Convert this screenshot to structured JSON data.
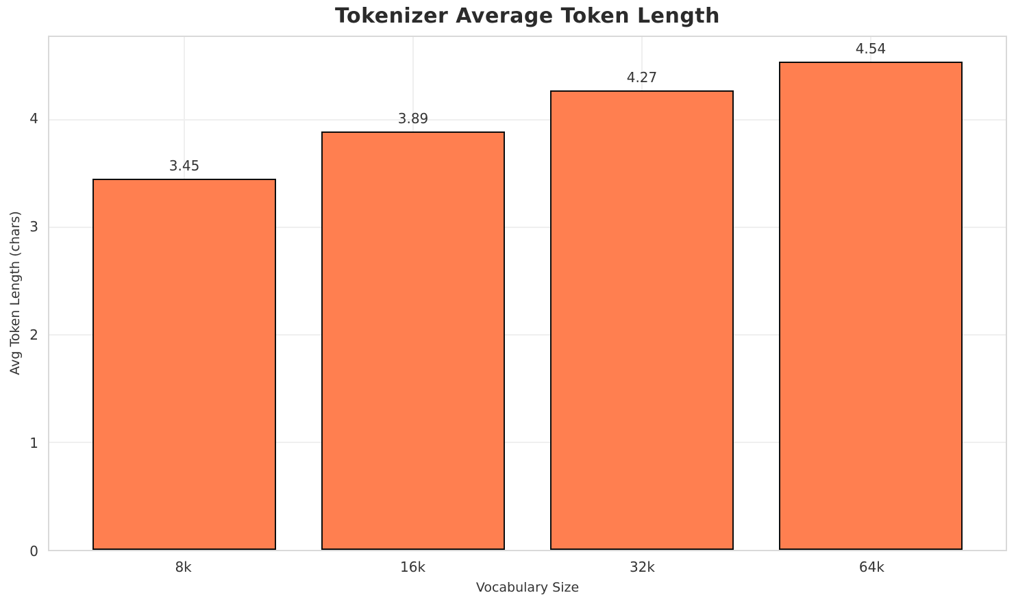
{
  "chart_data": {
    "type": "bar",
    "title": "Tokenizer Average Token Length",
    "xlabel": "Vocabulary Size",
    "ylabel": "Avg Token Length (chars)",
    "categories": [
      "8k",
      "16k",
      "32k",
      "64k"
    ],
    "values": [
      3.45,
      3.89,
      4.27,
      4.54
    ],
    "bar_value_labels": [
      "3.45",
      "3.89",
      "4.27",
      "4.54"
    ],
    "yticks": [
      0,
      1,
      2,
      3,
      4
    ],
    "ylim": [
      0,
      4.767
    ],
    "xlim": [
      -0.59,
      3.59
    ],
    "bar_width_units": 0.8,
    "grid": "on",
    "legend": "none",
    "colors": {
      "bar_fill": "#FF7F50",
      "bar_edge": "#0d0d0d",
      "grid_line": "#efefef",
      "spine": "#d9d9d9",
      "title_text": "#2b2b2b",
      "tick_text": "#333333"
    }
  }
}
